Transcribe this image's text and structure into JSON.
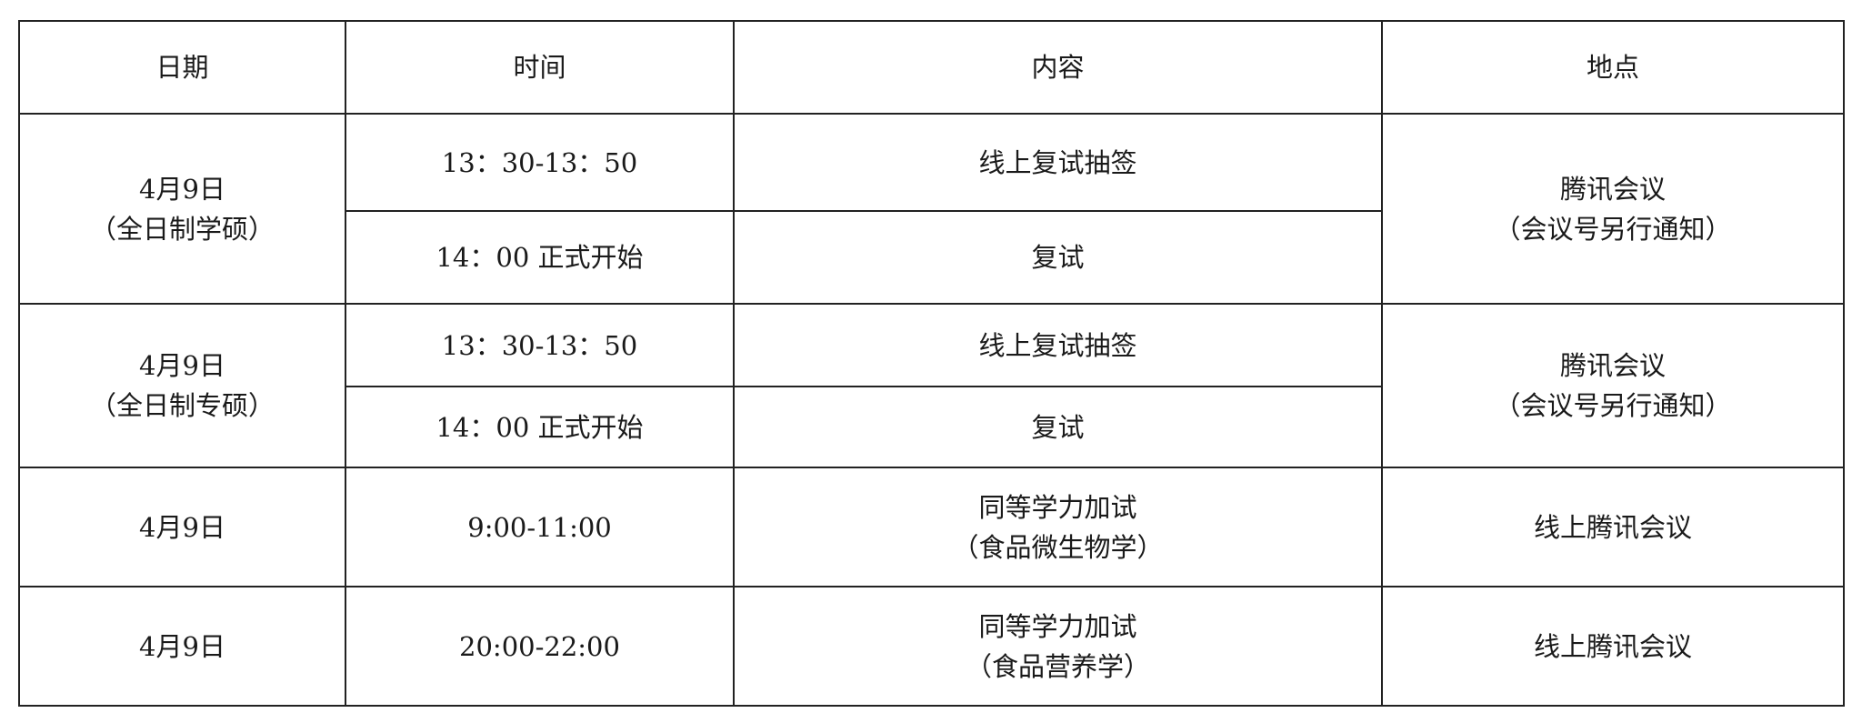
{
  "headers": [
    "日期",
    "时间",
    "内容",
    "地点"
  ],
  "groups": [
    {
      "date": [
        "4月9日",
        "（全日制学硕）"
      ],
      "sessions": [
        {
          "time": "13：30-13：50",
          "content": [
            "线上复试抽签"
          ]
        },
        {
          "time": "14：00 正式开始",
          "content": [
            "复试"
          ]
        }
      ],
      "location": [
        "腾讯会议",
        "（会议号另行通知）"
      ]
    },
    {
      "date": [
        "4月9日",
        "（全日制专硕）"
      ],
      "sessions": [
        {
          "time": "13：30-13：50",
          "content": [
            "线上复试抽签"
          ]
        },
        {
          "time": "14：00 正式开始",
          "content": [
            "复试"
          ]
        }
      ],
      "location": [
        "腾讯会议",
        "（会议号另行通知）"
      ]
    },
    {
      "date": [
        "4月9日"
      ],
      "sessions": [
        {
          "time": "9:00-11:00",
          "content": [
            "同等学力加试",
            "（食品微生物学）"
          ]
        }
      ],
      "location": [
        "线上腾讯会议"
      ]
    },
    {
      "date": [
        "4月9日"
      ],
      "sessions": [
        {
          "time": "20:00-22:00",
          "content": [
            "同等学力加试",
            "（食品营养学）"
          ]
        }
      ],
      "location": [
        "线上腾讯会议"
      ]
    }
  ]
}
